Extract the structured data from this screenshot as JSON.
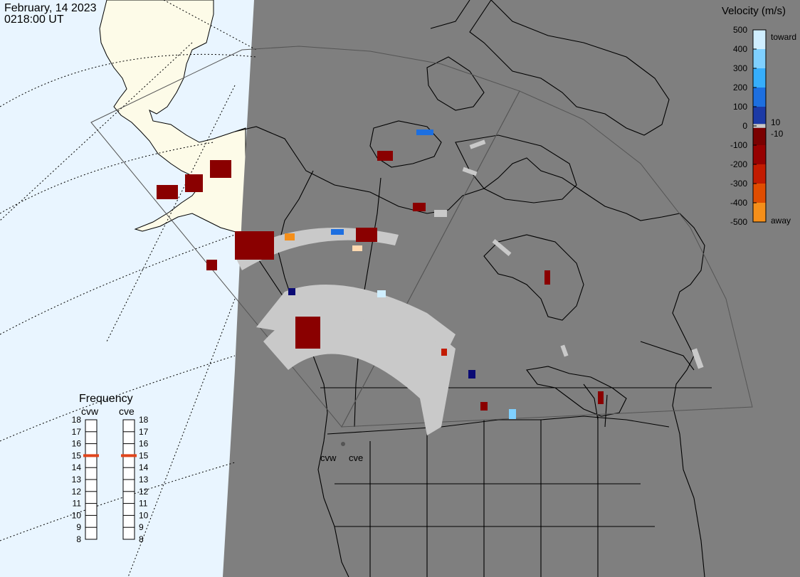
{
  "header": {
    "date": "February, 14 2023",
    "time": "0218:00 UT"
  },
  "colors": {
    "ocean_lit": "#e9f5ff",
    "land_lit": "#fdfbe8",
    "night": "#7f7f7f",
    "ground_scatter": "#c9c9c9",
    "dark_red": "#8a0000",
    "frequency_marker": "#e0451c"
  },
  "velocity_scale": {
    "title": "Velocity (m/s)",
    "ticks": [
      "500",
      "400",
      "300",
      "200",
      "100",
      "0",
      "-100",
      "-200",
      "-300",
      "-400",
      "-500"
    ],
    "label_toward": "toward",
    "label_away": "away",
    "label_pos": "10",
    "label_neg": "-10",
    "max": 500,
    "min": -500,
    "stops": [
      {
        "value": 500,
        "color": "#cfeeff"
      },
      {
        "value": 400,
        "color": "#7fd0ff"
      },
      {
        "value": 300,
        "color": "#36aefc"
      },
      {
        "value": 200,
        "color": "#1d6fe0"
      },
      {
        "value": 100,
        "color": "#1c3aa6"
      },
      {
        "value": 10,
        "color": "#0a0a74"
      },
      {
        "value": -10,
        "color": "#7a0000"
      },
      {
        "value": -100,
        "color": "#960000"
      },
      {
        "value": -200,
        "color": "#c21b00"
      },
      {
        "value": -300,
        "color": "#e04d00"
      },
      {
        "value": -400,
        "color": "#f58f1a"
      },
      {
        "value": -500,
        "color": "#ffd9b0"
      }
    ]
  },
  "frequency": {
    "title": "Frequency",
    "radars": [
      {
        "code": "cvw",
        "freq_mhz": 15
      },
      {
        "code": "cve",
        "freq_mhz": 15
      }
    ],
    "ticks": [
      "18",
      "17",
      "16",
      "15",
      "14",
      "13",
      "12",
      "11",
      "10",
      "9",
      "8"
    ]
  },
  "radar_sites": [
    {
      "code": "cvw"
    },
    {
      "code": "cve"
    }
  ]
}
